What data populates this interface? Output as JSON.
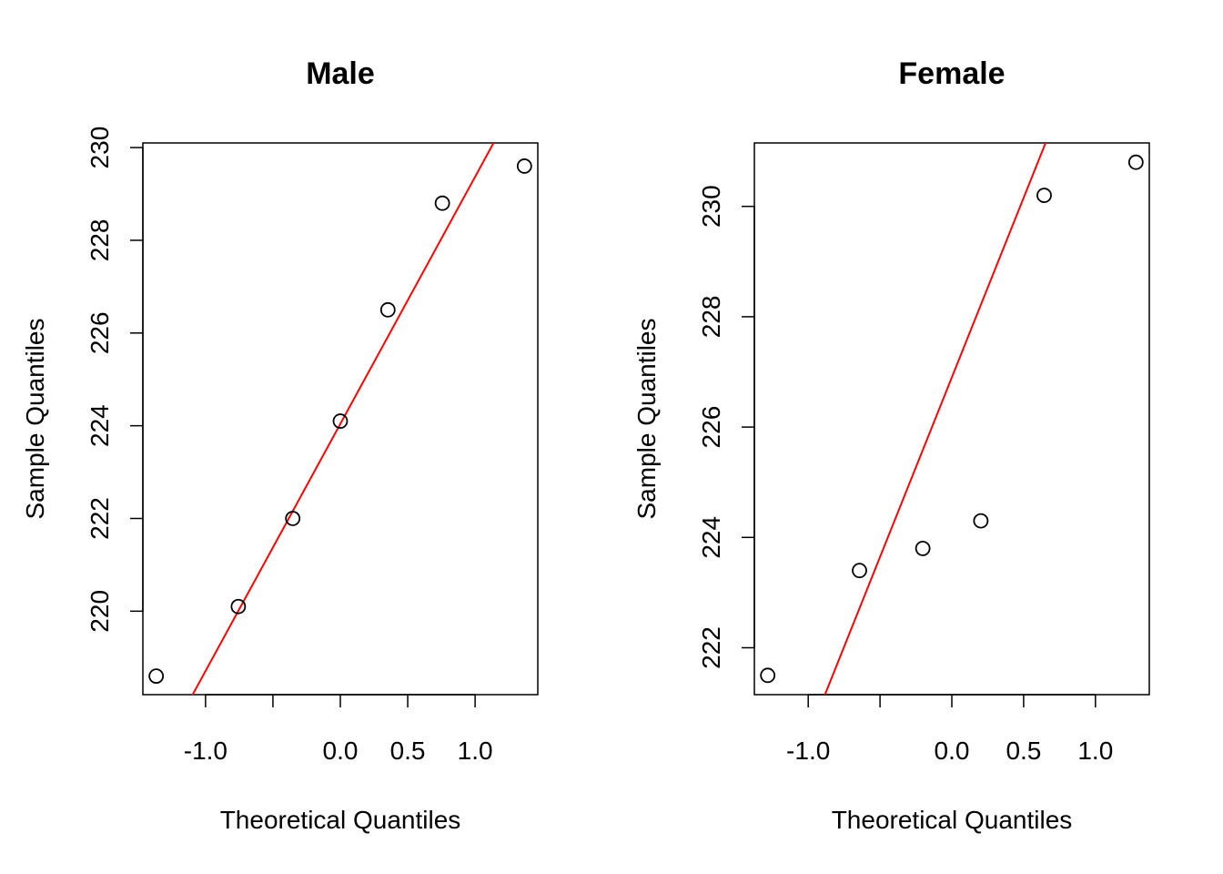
{
  "chart_data": [
    {
      "type": "scatter",
      "title": "Male",
      "xlabel": "Theoretical Quantiles",
      "ylabel": "Sample Quantiles",
      "xlim": [
        -1.465,
        1.465
      ],
      "ylim": [
        218.2,
        230.1
      ],
      "x_ticks": [
        -1.0,
        -0.5,
        0.0,
        0.5,
        1.0
      ],
      "x_tick_labels": [
        "-1.0",
        "",
        "0.0",
        "0.5",
        "1.0"
      ],
      "y_ticks": [
        220,
        222,
        224,
        226,
        228,
        230
      ],
      "y_tick_labels": [
        "220",
        "222",
        "224",
        "226",
        "228",
        "230"
      ],
      "points": {
        "x": [
          -1.366,
          -0.757,
          -0.353,
          0.0,
          0.353,
          0.757,
          1.366
        ],
        "y": [
          218.6,
          220.1,
          222.0,
          224.1,
          226.5,
          228.8,
          229.6
        ]
      },
      "reference_line": {
        "intercept": 224.04,
        "slope": 5.33,
        "color": "#ff0000"
      },
      "grid": false,
      "legend": "none"
    },
    {
      "type": "scatter",
      "title": "Female",
      "xlabel": "Theoretical Quantiles",
      "ylabel": "Sample Quantiles",
      "xlim": [
        -1.375,
        1.375
      ],
      "ylim": [
        221.15,
        231.15
      ],
      "x_ticks": [
        -1.0,
        -0.5,
        0.0,
        0.5,
        1.0
      ],
      "x_tick_labels": [
        "-1.0",
        "",
        "0.0",
        "0.5",
        "1.0"
      ],
      "y_ticks": [
        222,
        224,
        226,
        228,
        230
      ],
      "y_tick_labels": [
        "222",
        "224",
        "226",
        "228",
        "230"
      ],
      "points": {
        "x": [
          -1.282,
          -0.643,
          -0.202,
          0.202,
          0.643,
          1.282
        ],
        "y": [
          221.5,
          223.4,
          223.8,
          224.3,
          230.2,
          230.8
        ]
      },
      "reference_line": {
        "intercept": 226.9,
        "slope": 6.51,
        "color": "#ff0000"
      },
      "grid": false,
      "legend": "none"
    }
  ]
}
